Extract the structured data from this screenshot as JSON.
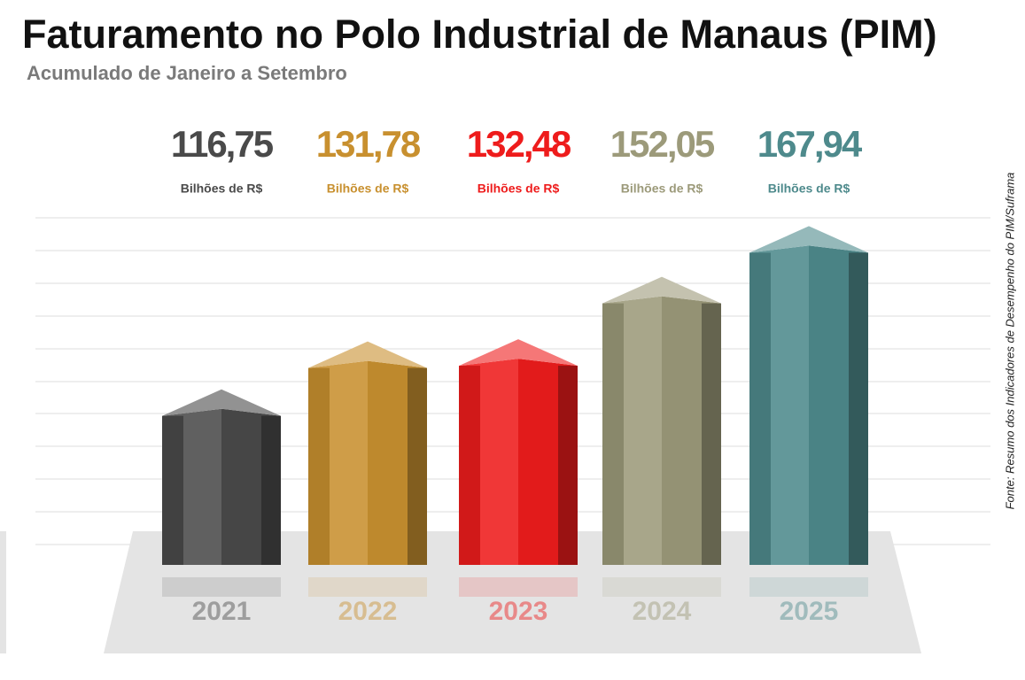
{
  "chart_data": {
    "type": "bar3d",
    "title": "Faturamento no Polo Industrial de Manaus (PIM)",
    "subtitle": "Acumulado de Janeiro a Setembro",
    "categories": [
      "2021",
      "2022",
      "2023",
      "2024",
      "2025"
    ],
    "values": [
      116.75,
      131.78,
      132.48,
      152.05,
      167.94
    ],
    "value_labels": [
      "116,75",
      "131,78",
      "132,48",
      "152,05",
      "167,94"
    ],
    "value_unit": "Bilhões de R$",
    "colors": [
      "#4a4a4a",
      "#c8902f",
      "#ee1c1c",
      "#9c9a7a",
      "#4e8a8c"
    ],
    "ylim": [
      70,
      175
    ],
    "source": "Fonte: Resumo dos Indicadores de Desempenho do PIM/Suframa"
  }
}
